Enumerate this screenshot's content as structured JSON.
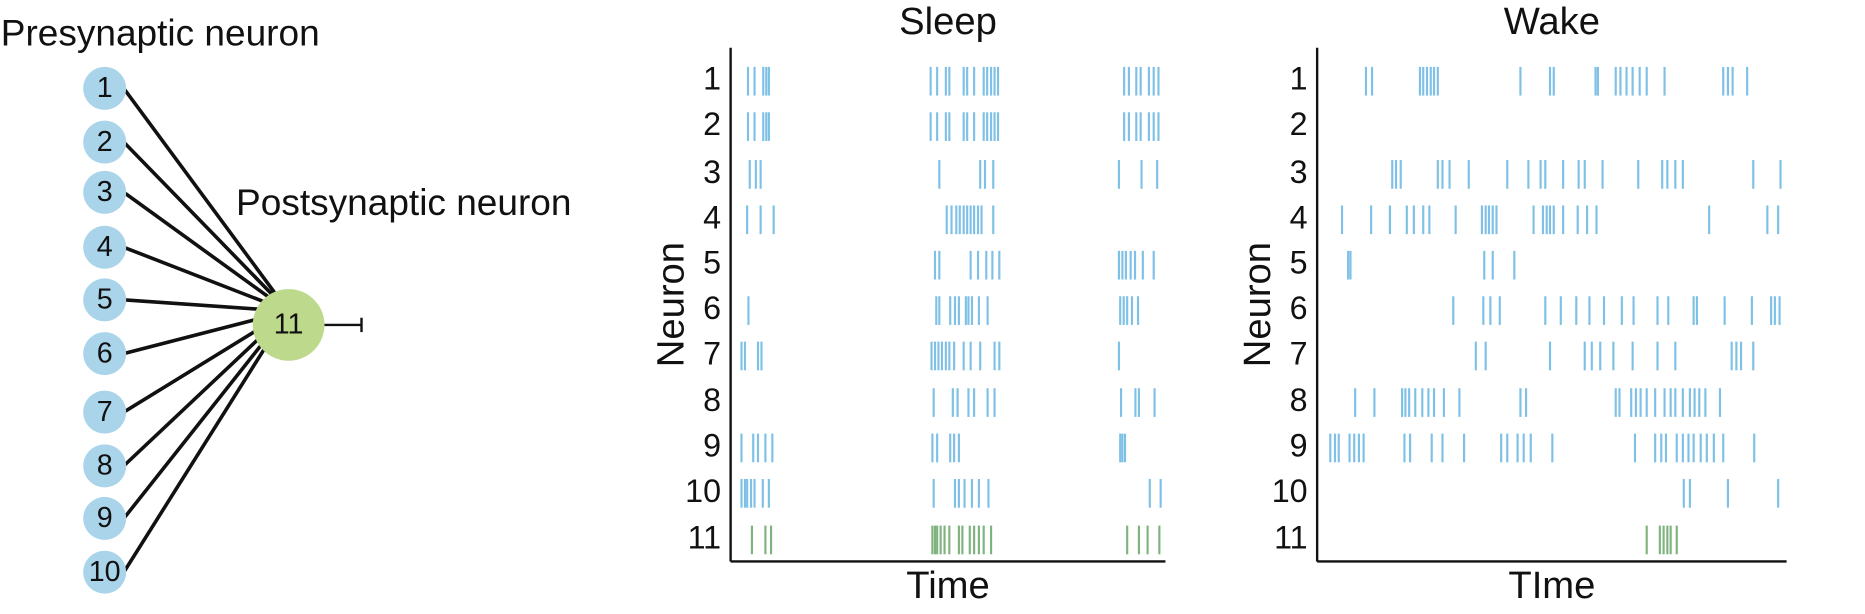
{
  "diagram": {
    "presynaptic_title": "Presynaptic neuron",
    "postsynaptic_title": "Postsynaptic neuron",
    "presynaptic_nodes": [
      "1",
      "2",
      "3",
      "4",
      "5",
      "6",
      "7",
      "8",
      "9",
      "10"
    ],
    "postsynaptic_node": "11",
    "presynaptic_color": "#a9d4ea",
    "postsynaptic_color": "#bcd98c"
  },
  "rasters": [
    {
      "title": "Sleep",
      "ylabel": "Neuron",
      "xlabel": "Time",
      "rows": [
        "1",
        "2",
        "3",
        "4",
        "5",
        "6",
        "7",
        "8",
        "9",
        "10",
        "11"
      ],
      "xlim": [
        0,
        100
      ],
      "color": "#7ec0e6",
      "output_color": "#7fb37d",
      "spikes": [
        [
          4,
          5.5,
          7.5,
          8.2,
          8.8,
          46,
          47.5,
          49.5,
          50.3,
          53.6,
          54.4,
          56,
          58.2,
          59,
          59.9,
          60.7,
          61.5,
          90.5,
          91.6,
          93.3,
          94.3,
          96.2,
          97.3,
          98.4
        ],
        [
          4,
          5.5,
          7.5,
          8.2,
          8.8,
          46,
          47.5,
          49.5,
          50.3,
          53.6,
          54.4,
          56,
          58.2,
          59,
          59.9,
          60.7,
          61.5,
          90.5,
          91.6,
          93.3,
          94.3,
          96.2,
          97.3,
          98.4
        ],
        [
          4.4,
          5.8,
          6.9,
          48,
          57.4,
          58.5,
          60.4,
          89.3,
          94.5,
          98.1
        ],
        [
          3.8,
          6.9,
          9.9,
          49.7,
          50.8,
          51.9,
          52.7,
          53.6,
          54.4,
          55.2,
          56,
          56.9,
          57.7,
          60.4
        ],
        [
          47,
          48,
          55.2,
          56.9,
          58.8,
          60.2,
          61.8,
          89.3,
          90.1,
          90.9,
          92,
          93,
          94.8,
          97.3
        ],
        [
          4.1,
          47.3,
          48,
          50.5,
          51.6,
          52.5,
          54.1,
          54.7,
          55.5,
          57.1,
          59.1,
          89.6,
          90.4,
          91.2,
          92.3,
          93.7
        ],
        [
          2.5,
          3.3,
          6.3,
          7.1,
          46.2,
          47,
          47.8,
          48.6,
          49.5,
          50.3,
          51.4,
          53.6,
          55.2,
          57.4,
          60.7,
          61.8,
          89.3
        ],
        [
          46.7,
          51.1,
          52.2,
          54.7,
          56,
          59.1,
          60.7,
          89.8,
          93.1,
          93.9,
          97.5
        ],
        [
          2.5,
          5.2,
          6.3,
          8,
          9.6,
          46.4,
          47.5,
          50.5,
          51.4,
          52.5,
          89.6,
          90.1,
          90.7
        ],
        [
          2.5,
          3.3,
          3.8,
          4.7,
          5.5,
          7.4,
          8.8,
          46.7,
          51.6,
          52.5,
          53.8,
          55.5,
          57.1,
          59.3,
          96.4,
          98.9
        ],
        [
          4.9,
          8,
          9.3,
          46.4,
          47,
          47.5,
          48.3,
          49.2,
          50.3,
          52.5,
          53.3,
          55,
          56,
          57.1,
          58.2,
          59.9,
          91.2,
          93.9,
          95.9,
          98.6
        ]
      ]
    },
    {
      "title": "Wake",
      "ylabel": "Neuron",
      "xlabel": "TIme",
      "rows": [
        "1",
        "2",
        "3",
        "4",
        "5",
        "6",
        "7",
        "8",
        "9",
        "10",
        "11"
      ],
      "xlim": [
        0,
        100
      ],
      "color": "#7ec0e6",
      "output_color": "#7fb37d",
      "spikes": [
        [
          10.4,
          11.7,
          21.9,
          22.6,
          23.4,
          24.2,
          24.9,
          25.7,
          43.3,
          49.6,
          50.4,
          59.3,
          59.8,
          63.6,
          64.6,
          65.9,
          67.2,
          68.7,
          70.2,
          74,
          86.5,
          87.5,
          88.5,
          91.6
        ],
        [],
        [
          16,
          16.8,
          17.8,
          25.7,
          26.7,
          28.2,
          32.3,
          40.5,
          45,
          47.6,
          48.6,
          52.4,
          55.7,
          57,
          60.8,
          68.4,
          73.5,
          74.6,
          76.3,
          77.9,
          92.9,
          98.7
        ],
        [
          5.3,
          11.5,
          15.5,
          19.1,
          20.6,
          22.6,
          23.9,
          29.5,
          35.1,
          35.9,
          36.6,
          37.4,
          38.2,
          46.1,
          48.1,
          48.9,
          49.6,
          50.4,
          52.4,
          55.5,
          57.5,
          59.5,
          83.5,
          95.9,
          98.2
        ],
        [
          6.6,
          7.1,
          35.6,
          37.4,
          42
        ],
        [
          29,
          35.4,
          36.9,
          38.9,
          48.6,
          51.9,
          55.2,
          58,
          61.1,
          64.9,
          67.4,
          72.5,
          74.8,
          80.2,
          80.9,
          86.8,
          92.6,
          96.7,
          97.5,
          98.5
        ],
        [
          33.8,
          35.9,
          49.6,
          57,
          58.5,
          60.3,
          63.1,
          67.2,
          72.5,
          76.3,
          88.3,
          89.3,
          90.3,
          92.9
        ],
        [
          8.1,
          12.2,
          18.1,
          18.8,
          19.6,
          20.9,
          22.4,
          23.7,
          24.9,
          27,
          30.3,
          43.3,
          44.5,
          63.6,
          64.4,
          66.9,
          67.9,
          68.9,
          70.2,
          72,
          74,
          75.3,
          76.3,
          77.9,
          79.4,
          80.4,
          81.4,
          82.7,
          85.8
        ],
        [
          2.8,
          3.8,
          4.6,
          6.9,
          7.9,
          8.9,
          9.9,
          18.6,
          19.8,
          24.4,
          26.7,
          31.3,
          39.2,
          40.5,
          42.7,
          44,
          45.5,
          50.1,
          67.7,
          72,
          73.3,
          74.3,
          76.6,
          77.9,
          79.1,
          80.2,
          81.7,
          83,
          84.5,
          86.5,
          93.1
        ],
        [
          78.1,
          79.4,
          87.5,
          98.2
        ],
        [
          70.2,
          73,
          73.8,
          74.6,
          75.3,
          76.6
        ]
      ]
    }
  ]
}
